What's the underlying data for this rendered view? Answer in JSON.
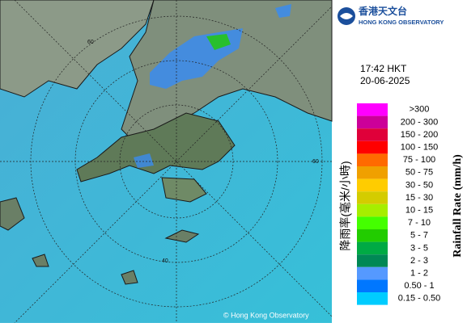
{
  "header": {
    "logo_chinese": "香港天文台",
    "logo_english": "HONG KONG OBSERVATORY"
  },
  "timestamp": {
    "time": "17:42 HKT",
    "date": "20-06-2025"
  },
  "legend": {
    "title_chinese": "降雨率(毫米/小時)",
    "title_english": "Rainfall Rate (mm/h)",
    "items": [
      {
        "label": ">300",
        "color": "#ff00ff"
      },
      {
        "label": "200 - 300",
        "color": "#cc0099"
      },
      {
        "label": "150 - 200",
        "color": "#e0003a"
      },
      {
        "label": "100 - 150",
        "color": "#ff0000"
      },
      {
        "label": "75 - 100",
        "color": "#ff6a00"
      },
      {
        "label": "50 - 75",
        "color": "#f0a000"
      },
      {
        "label": "30 - 50",
        "color": "#ffcc00"
      },
      {
        "label": "15 - 30",
        "color": "#d4cc00"
      },
      {
        "label": "10 - 15",
        "color": "#a6ee00"
      },
      {
        "label": "7 - 10",
        "color": "#44ff00"
      },
      {
        "label": "5 - 7",
        "color": "#22cc00"
      },
      {
        "label": "3 - 5",
        "color": "#00aa44"
      },
      {
        "label": "2 - 3",
        "color": "#008855"
      },
      {
        "label": "1 - 2",
        "color": "#5599ff"
      },
      {
        "label": "0.50 - 1",
        "color": "#0077ff"
      },
      {
        "label": "0.15 - 0.50",
        "color": "#00ccff"
      }
    ]
  },
  "map": {
    "ring_labels": [
      "60",
      "40",
      "60"
    ],
    "copyright": "© Hong Kong Observatory"
  }
}
